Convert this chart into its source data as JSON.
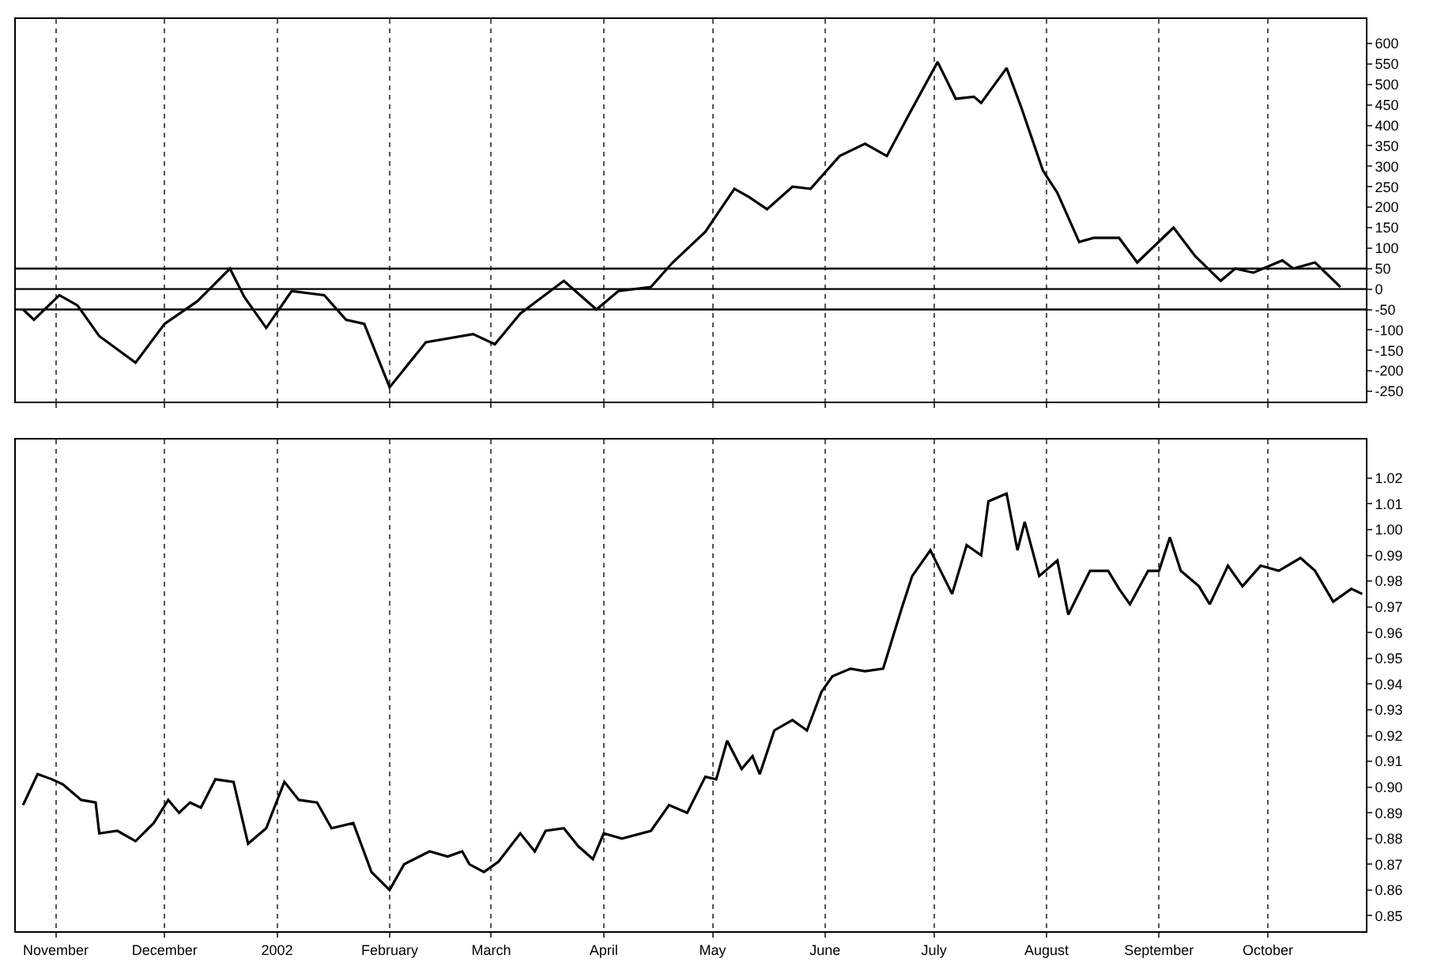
{
  "chart_data": [
    {
      "type": "line",
      "grid": "x",
      "tick_labels": "y",
      "line_style": "solid",
      "xlim": [
        "2001-10-21",
        "2002-10-28"
      ],
      "ylim": [
        -275,
        660
      ],
      "xticks": [
        {
          "value": "2001-11-01",
          "label": null
        },
        {
          "value": "2001-12-01",
          "label": null
        },
        {
          "value": "2002-01-01",
          "label": null
        },
        {
          "value": "2002-02-01",
          "label": null
        },
        {
          "value": "2002-03-01",
          "label": null
        },
        {
          "value": "2002-04-01",
          "label": null
        },
        {
          "value": "2002-05-01",
          "label": null
        },
        {
          "value": "2002-06-01",
          "label": null
        },
        {
          "value": "2002-07-01",
          "label": null
        },
        {
          "value": "2002-08-01",
          "label": null
        },
        {
          "value": "2002-09-01",
          "label": null
        },
        {
          "value": "2002-10-01",
          "label": null
        }
      ],
      "yticks": [
        -250,
        -200,
        -150,
        -100,
        -50,
        0,
        50,
        100,
        150,
        200,
        250,
        300,
        350,
        400,
        450,
        500,
        550,
        600
      ],
      "ref_lines": [
        {
          "axis": "y",
          "value": 50,
          "color": "#000000"
        },
        {
          "axis": "y",
          "value": 0,
          "color": "#000000"
        },
        {
          "axis": "y",
          "value": -50,
          "color": "#000000"
        }
      ],
      "series": [
        {
          "color": "#000000",
          "x": [
            "2001-10-23",
            "2001-10-26",
            "2001-11-02",
            "2001-11-07",
            "2001-11-13",
            "2001-11-23",
            "2001-12-01",
            "2001-12-10",
            "2001-12-19",
            "2001-12-23",
            "2001-12-29",
            "2002-01-05",
            "2002-01-14",
            "2002-01-20",
            "2002-01-25",
            "2002-02-01",
            "2002-02-11",
            "2002-02-24",
            "2002-03-02",
            "2002-03-09",
            "2002-03-21",
            "2002-03-30",
            "2002-04-05",
            "2002-04-14",
            "2002-04-20",
            "2002-04-29",
            "2002-05-07",
            "2002-05-11",
            "2002-05-16",
            "2002-05-23",
            "2002-05-28",
            "2002-06-05",
            "2002-06-12",
            "2002-06-18",
            "2002-06-24",
            "2002-07-02",
            "2002-07-07",
            "2002-07-12",
            "2002-07-14",
            "2002-07-21",
            "2002-07-25",
            "2002-07-31",
            "2002-08-04",
            "2002-08-10",
            "2002-08-14",
            "2002-08-21",
            "2002-08-26",
            "2002-09-05",
            "2002-09-11",
            "2002-09-18",
            "2002-09-22",
            "2002-09-27",
            "2002-10-05",
            "2002-10-08",
            "2002-10-14",
            "2002-10-21"
          ],
          "values": [
            -50,
            -75,
            -15,
            -40,
            -115,
            -180,
            -85,
            -30,
            50,
            -20,
            -95,
            -5,
            -15,
            -75,
            -85,
            -240,
            -130,
            -110,
            -135,
            -60,
            20,
            -50,
            -5,
            5,
            65,
            140,
            245,
            225,
            195,
            250,
            245,
            325,
            355,
            325,
            425,
            555,
            465,
            470,
            455,
            540,
            445,
            290,
            235,
            115,
            125,
            125,
            65,
            150,
            80,
            20,
            50,
            40,
            70,
            50,
            65,
            5
          ]
        }
      ]
    },
    {
      "type": "line",
      "grid": "x",
      "line_style": "solid",
      "xlim": [
        "2001-10-21",
        "2002-10-28"
      ],
      "ylim": [
        0.844,
        1.035
      ],
      "xticks": [
        {
          "value": "2001-11-01",
          "label": "November"
        },
        {
          "value": "2001-12-01",
          "label": "December"
        },
        {
          "value": "2002-01-01",
          "label": "2002"
        },
        {
          "value": "2002-02-01",
          "label": "February"
        },
        {
          "value": "2002-03-01",
          "label": "March"
        },
        {
          "value": "2002-04-01",
          "label": "April"
        },
        {
          "value": "2002-05-01",
          "label": "May"
        },
        {
          "value": "2002-06-01",
          "label": "June"
        },
        {
          "value": "2002-07-01",
          "label": "July"
        },
        {
          "value": "2002-08-01",
          "label": "August"
        },
        {
          "value": "2002-09-01",
          "label": "September"
        },
        {
          "value": "2002-10-01",
          "label": "October"
        }
      ],
      "yticks": [
        {
          "value": 0.85,
          "label": "0.85"
        },
        {
          "value": 0.86,
          "label": "0.86"
        },
        {
          "value": 0.87,
          "label": "0.87"
        },
        {
          "value": 0.88,
          "label": "0.88"
        },
        {
          "value": 0.89,
          "label": "0.89"
        },
        {
          "value": 0.9,
          "label": "0.90"
        },
        {
          "value": 0.91,
          "label": "0.91"
        },
        {
          "value": 0.92,
          "label": "0.92"
        },
        {
          "value": 0.93,
          "label": "0.93"
        },
        {
          "value": 0.94,
          "label": "0.94"
        },
        {
          "value": 0.95,
          "label": "0.95"
        },
        {
          "value": 0.96,
          "label": "0.96"
        },
        {
          "value": 0.97,
          "label": "0.97"
        },
        {
          "value": 0.98,
          "label": "0.98"
        },
        {
          "value": 0.99,
          "label": "0.99"
        },
        {
          "value": 1.0,
          "label": "1.00"
        },
        {
          "value": 1.01,
          "label": "1.01"
        },
        {
          "value": 1.02,
          "label": "1.02"
        }
      ],
      "series": [
        {
          "color": "#000000",
          "x": [
            "2001-10-23",
            "2001-10-27",
            "2001-10-31",
            "2001-11-03",
            "2001-11-08",
            "2001-11-12",
            "2001-11-13",
            "2001-11-18",
            "2001-11-23",
            "2001-11-28",
            "2001-12-02",
            "2001-12-05",
            "2001-12-08",
            "2001-12-11",
            "2001-12-15",
            "2001-12-20",
            "2001-12-24",
            "2001-12-29",
            "2002-01-03",
            "2002-01-07",
            "2002-01-12",
            "2002-01-16",
            "2002-01-22",
            "2002-01-27",
            "2002-02-01",
            "2002-02-05",
            "2002-02-12",
            "2002-02-17",
            "2002-02-21",
            "2002-02-23",
            "2002-02-27",
            "2002-03-03",
            "2002-03-09",
            "2002-03-13",
            "2002-03-16",
            "2002-03-21",
            "2002-03-25",
            "2002-03-29",
            "2002-04-01",
            "2002-04-06",
            "2002-04-14",
            "2002-04-19",
            "2002-04-24",
            "2002-04-29",
            "2002-05-02",
            "2002-05-05",
            "2002-05-09",
            "2002-05-12",
            "2002-05-14",
            "2002-05-18",
            "2002-05-23",
            "2002-05-27",
            "2002-05-31",
            "2002-06-03",
            "2002-06-08",
            "2002-06-12",
            "2002-06-17",
            "2002-06-22",
            "2002-06-25",
            "2002-06-30",
            "2002-07-06",
            "2002-07-10",
            "2002-07-14",
            "2002-07-16",
            "2002-07-21",
            "2002-07-24",
            "2002-07-26",
            "2002-07-30",
            "2002-08-04",
            "2002-08-07",
            "2002-08-13",
            "2002-08-18",
            "2002-08-21",
            "2002-08-24",
            "2002-08-29",
            "2002-09-01",
            "2002-09-04",
            "2002-09-07",
            "2002-09-12",
            "2002-09-15",
            "2002-09-20",
            "2002-09-24",
            "2002-09-29",
            "2002-10-04",
            "2002-10-10",
            "2002-10-14",
            "2002-10-19",
            "2002-10-24",
            "2002-10-27"
          ],
          "values": [
            0.893,
            0.905,
            0.903,
            0.901,
            0.895,
            0.894,
            0.882,
            0.883,
            0.879,
            0.886,
            0.895,
            0.89,
            0.894,
            0.892,
            0.903,
            0.902,
            0.878,
            0.884,
            0.902,
            0.895,
            0.894,
            0.884,
            0.886,
            0.867,
            0.86,
            0.87,
            0.875,
            0.873,
            0.875,
            0.87,
            0.867,
            0.871,
            0.882,
            0.875,
            0.883,
            0.884,
            0.877,
            0.872,
            0.882,
            0.88,
            0.883,
            0.893,
            0.89,
            0.904,
            0.903,
            0.918,
            0.907,
            0.912,
            0.905,
            0.922,
            0.926,
            0.922,
            0.937,
            0.943,
            0.946,
            0.945,
            0.946,
            0.969,
            0.982,
            0.992,
            0.975,
            0.994,
            0.99,
            1.011,
            1.014,
            0.992,
            1.003,
            0.982,
            0.988,
            0.967,
            0.984,
            0.984,
            0.977,
            0.971,
            0.984,
            0.984,
            0.997,
            0.984,
            0.978,
            0.971,
            0.986,
            0.978,
            0.986,
            0.984,
            0.989,
            0.984,
            0.972,
            0.977,
            0.975
          ]
        }
      ]
    }
  ]
}
